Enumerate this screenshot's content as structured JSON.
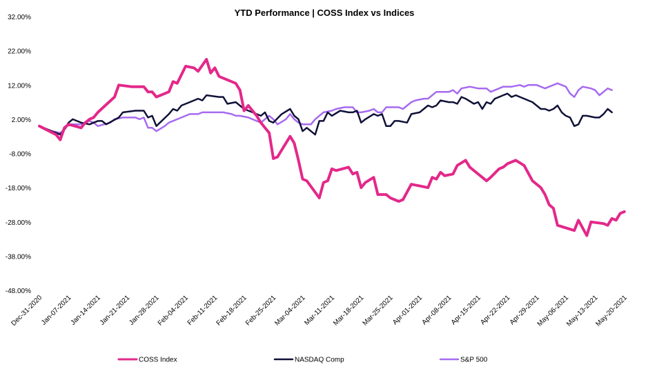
{
  "chart_data": {
    "type": "line",
    "title": "YTD Performance | COSS Index vs Indices",
    "xlabel": "",
    "ylabel": "",
    "ylim": [
      -48,
      32
    ],
    "y_ticks": [
      32,
      22,
      12,
      2,
      -8,
      -18,
      -28,
      -38,
      -48
    ],
    "y_tick_labels": [
      "32.00%",
      "22.00%",
      "12.00%",
      "2.00%",
      "-8.00%",
      "-18.00%",
      "-28.00%",
      "-38.00%",
      "-48.00%"
    ],
    "x_tick_labels": [
      "Dec-31-2020",
      "Jan-07-2021",
      "Jan-14-2021",
      "Jan-21-2021",
      "Jan-28-2021",
      "Feb-04-2021",
      "Feb-11-2021",
      "Feb-18-2021",
      "Feb-25-2021",
      "Mar-04-2021",
      "Mar-11-2021",
      "Mar-18-2021",
      "Mar-25-2021",
      "Apr-01-2021",
      "Apr-08-2021",
      "Apr-15-2021",
      "Apr-22-2021",
      "Apr-29-2021",
      "May-06-2021",
      "May-13-2021",
      "May-20-2021"
    ],
    "x_tick_days": [
      0,
      7,
      14,
      21,
      28,
      35,
      42,
      49,
      56,
      63,
      70,
      77,
      84,
      91,
      98,
      105,
      112,
      119,
      126,
      133,
      140
    ],
    "x_range_days": [
      0,
      143
    ],
    "legend_position": "bottom",
    "series": [
      {
        "name": "COSS Index",
        "color": "#e3288a",
        "line_width": 4,
        "points": [
          [
            0,
            0
          ],
          [
            4,
            -2.5
          ],
          [
            5,
            -4
          ],
          [
            6,
            -0.5
          ],
          [
            7,
            0.5
          ],
          [
            10,
            -0.5
          ],
          [
            11,
            1
          ],
          [
            12,
            2
          ],
          [
            13,
            2.5
          ],
          [
            14,
            4
          ],
          [
            18,
            8.5
          ],
          [
            19,
            12
          ],
          [
            22,
            11.5
          ],
          [
            25,
            11.5
          ],
          [
            26,
            10
          ],
          [
            27,
            10
          ],
          [
            28,
            8.5
          ],
          [
            31,
            10
          ],
          [
            32,
            13
          ],
          [
            33,
            12.5
          ],
          [
            34,
            15
          ],
          [
            35,
            17.5
          ],
          [
            37,
            17
          ],
          [
            38,
            16
          ],
          [
            40,
            19.5
          ],
          [
            41,
            15.5
          ],
          [
            42,
            17
          ],
          [
            43,
            14.5
          ],
          [
            47,
            12.5
          ],
          [
            48,
            10.5
          ],
          [
            49,
            4.5
          ],
          [
            50,
            6
          ],
          [
            52,
            3
          ],
          [
            53,
            1
          ],
          [
            54,
            -0.5
          ],
          [
            55,
            -2
          ],
          [
            56,
            -9.5
          ],
          [
            57,
            -9
          ],
          [
            58,
            -7
          ],
          [
            60,
            -3
          ],
          [
            61,
            -5
          ],
          [
            62,
            -10
          ],
          [
            63,
            -15.5
          ],
          [
            64,
            -16
          ],
          [
            67,
            -21
          ],
          [
            68,
            -16.5
          ],
          [
            69,
            -16
          ],
          [
            70,
            -12.5
          ],
          [
            71,
            -13
          ],
          [
            74,
            -12
          ],
          [
            75,
            -14
          ],
          [
            76,
            -13.5
          ],
          [
            77,
            -18
          ],
          [
            78,
            -16.5
          ],
          [
            80,
            -15
          ],
          [
            81,
            -20
          ],
          [
            83,
            -20
          ],
          [
            84,
            -21
          ],
          [
            86,
            -22
          ],
          [
            87,
            -21.5
          ],
          [
            89,
            -17
          ],
          [
            91,
            -17.5
          ],
          [
            93,
            -18
          ],
          [
            94,
            -15
          ],
          [
            95,
            -15.5
          ],
          [
            96,
            -13.5
          ],
          [
            97,
            -14.5
          ],
          [
            99,
            -14
          ],
          [
            100,
            -11.5
          ],
          [
            102,
            -10
          ],
          [
            103,
            -12
          ],
          [
            106,
            -15
          ],
          [
            107,
            -16
          ],
          [
            108,
            -15
          ],
          [
            110,
            -12.5
          ],
          [
            111,
            -12
          ],
          [
            112,
            -11
          ],
          [
            114,
            -10
          ],
          [
            116,
            -11.5
          ],
          [
            118,
            -16
          ],
          [
            120,
            -18
          ],
          [
            121,
            -20
          ],
          [
            122,
            -23
          ],
          [
            123,
            -24
          ],
          [
            124,
            -29
          ],
          [
            128,
            -30.5
          ],
          [
            129,
            -27.5
          ],
          [
            131,
            -32
          ],
          [
            132,
            -28
          ],
          [
            135,
            -28.5
          ],
          [
            136,
            -29
          ],
          [
            137,
            -27
          ],
          [
            138,
            -27.5
          ],
          [
            139,
            -25.5
          ],
          [
            140,
            -25
          ]
        ]
      },
      {
        "name": "NASDAQ Comp",
        "color": "#0f1137",
        "line_width": 2.5,
        "points": [
          [
            0,
            0
          ],
          [
            5,
            -2.5
          ],
          [
            6,
            -1
          ],
          [
            7,
            1
          ],
          [
            8,
            2
          ],
          [
            10,
            1
          ],
          [
            12,
            0.5
          ],
          [
            13,
            1
          ],
          [
            14,
            1.5
          ],
          [
            15,
            1.5
          ],
          [
            16,
            0.5
          ],
          [
            19,
            2.5
          ],
          [
            20,
            4
          ],
          [
            23,
            4.5
          ],
          [
            25,
            4.5
          ],
          [
            26,
            2.5
          ],
          [
            27,
            3
          ],
          [
            28,
            0
          ],
          [
            31,
            3.5
          ],
          [
            32,
            5
          ],
          [
            33,
            4.5
          ],
          [
            34,
            6
          ],
          [
            36,
            7
          ],
          [
            38,
            8
          ],
          [
            39,
            7.5
          ],
          [
            40,
            9
          ],
          [
            43,
            8.5
          ],
          [
            44,
            8.5
          ],
          [
            45,
            6.5
          ],
          [
            47,
            7
          ],
          [
            49,
            5
          ],
          [
            51,
            4
          ],
          [
            52,
            3.5
          ],
          [
            53,
            3
          ],
          [
            54,
            4
          ],
          [
            55,
            1.5
          ],
          [
            56,
            1
          ],
          [
            58,
            3.5
          ],
          [
            60,
            5
          ],
          [
            61,
            3
          ],
          [
            62,
            2
          ],
          [
            63,
            -1.5
          ],
          [
            64,
            -0.5
          ],
          [
            66,
            -2.5
          ],
          [
            67,
            1.5
          ],
          [
            68,
            1.5
          ],
          [
            69,
            4
          ],
          [
            70,
            3
          ],
          [
            72,
            4.5
          ],
          [
            74,
            4
          ],
          [
            75,
            4
          ],
          [
            76,
            4.5
          ],
          [
            77,
            1
          ],
          [
            78,
            2
          ],
          [
            80,
            3.5
          ],
          [
            81,
            3
          ],
          [
            82,
            3.5
          ],
          [
            83,
            0
          ],
          [
            84,
            0
          ],
          [
            85,
            1.5
          ],
          [
            86,
            1.5
          ],
          [
            88,
            1
          ],
          [
            89,
            3.5
          ],
          [
            91,
            4
          ],
          [
            93,
            6
          ],
          [
            94,
            5.5
          ],
          [
            95,
            6
          ],
          [
            96,
            7.5
          ],
          [
            98,
            7
          ],
          [
            99,
            7
          ],
          [
            100,
            6.5
          ],
          [
            101,
            8.5
          ],
          [
            102,
            8
          ],
          [
            104,
            6.5
          ],
          [
            105,
            7
          ],
          [
            106,
            5
          ],
          [
            107,
            7
          ],
          [
            108,
            6.5
          ],
          [
            109,
            8
          ],
          [
            111,
            9
          ],
          [
            112,
            9.5
          ],
          [
            113,
            8.5
          ],
          [
            114,
            9
          ],
          [
            116,
            8
          ],
          [
            117,
            7.5
          ],
          [
            118,
            7
          ],
          [
            120,
            5
          ],
          [
            121,
            5
          ],
          [
            122,
            4.5
          ],
          [
            123,
            5
          ],
          [
            124,
            6
          ],
          [
            125,
            4
          ],
          [
            126,
            3
          ],
          [
            127,
            2.5
          ],
          [
            128,
            0
          ],
          [
            129,
            0.5
          ],
          [
            130,
            3
          ],
          [
            131,
            3
          ],
          [
            133,
            2.5
          ],
          [
            134,
            2.5
          ],
          [
            135,
            3.5
          ],
          [
            136,
            5
          ],
          [
            137,
            4
          ]
        ]
      },
      {
        "name": "S&P 500",
        "color": "#a66af0",
        "line_width": 2.5,
        "points": [
          [
            0,
            0
          ],
          [
            3,
            -1.5
          ],
          [
            5,
            -2
          ],
          [
            6,
            -1
          ],
          [
            7,
            0.5
          ],
          [
            10,
            0.5
          ],
          [
            12,
            1.5
          ],
          [
            13,
            1
          ],
          [
            14,
            0
          ],
          [
            17,
            1
          ],
          [
            18,
            2
          ],
          [
            20,
            2.5
          ],
          [
            23,
            2.5
          ],
          [
            24,
            2
          ],
          [
            25,
            2.5
          ],
          [
            26,
            -0.5
          ],
          [
            27,
            -0.5
          ],
          [
            28,
            -1.5
          ],
          [
            30,
            0
          ],
          [
            31,
            1
          ],
          [
            33,
            2
          ],
          [
            35,
            3
          ],
          [
            36,
            3.5
          ],
          [
            38,
            3.5
          ],
          [
            39,
            4
          ],
          [
            40,
            4
          ],
          [
            43,
            4
          ],
          [
            44,
            4
          ],
          [
            46,
            3.5
          ],
          [
            47,
            3
          ],
          [
            48,
            3
          ],
          [
            50,
            2.5
          ],
          [
            52,
            1.5
          ],
          [
            53,
            1
          ],
          [
            54,
            2
          ],
          [
            55,
            3
          ],
          [
            56,
            2
          ],
          [
            57,
            0.5
          ],
          [
            59,
            2
          ],
          [
            60,
            3.5
          ],
          [
            61,
            2
          ],
          [
            62,
            1
          ],
          [
            63,
            0.5
          ],
          [
            65,
            0.5
          ],
          [
            66,
            2
          ],
          [
            67,
            3
          ],
          [
            68,
            4
          ],
          [
            70,
            4.5
          ],
          [
            71,
            5
          ],
          [
            73,
            5.5
          ],
          [
            75,
            5.5
          ],
          [
            76,
            4
          ],
          [
            77,
            4
          ],
          [
            79,
            4.5
          ],
          [
            80,
            5
          ],
          [
            81,
            4
          ],
          [
            82,
            4
          ],
          [
            83,
            5.5
          ],
          [
            84,
            5.5
          ],
          [
            86,
            5.5
          ],
          [
            87,
            5
          ],
          [
            89,
            7
          ],
          [
            90,
            7.5
          ],
          [
            92,
            8
          ],
          [
            93,
            8
          ],
          [
            95,
            10
          ],
          [
            96,
            10
          ],
          [
            98,
            10
          ],
          [
            99,
            10.5
          ],
          [
            100,
            9.5
          ],
          [
            101,
            11
          ],
          [
            103,
            11.5
          ],
          [
            105,
            11
          ],
          [
            107,
            11
          ],
          [
            108,
            10
          ],
          [
            110,
            11
          ],
          [
            111,
            11.5
          ],
          [
            113,
            11.5
          ],
          [
            115,
            12
          ],
          [
            116,
            11.5
          ],
          [
            117,
            12
          ],
          [
            119,
            12
          ],
          [
            120,
            11.5
          ],
          [
            121,
            11
          ],
          [
            122,
            11.5
          ],
          [
            124,
            12.5
          ],
          [
            125,
            12
          ],
          [
            126,
            11.5
          ],
          [
            127,
            9.5
          ],
          [
            128,
            8.5
          ],
          [
            129,
            10.5
          ],
          [
            130,
            11.5
          ],
          [
            132,
            11
          ],
          [
            133,
            10.5
          ],
          [
            134,
            9
          ],
          [
            135,
            10
          ],
          [
            136,
            11
          ],
          [
            137,
            10.5
          ]
        ]
      }
    ]
  }
}
